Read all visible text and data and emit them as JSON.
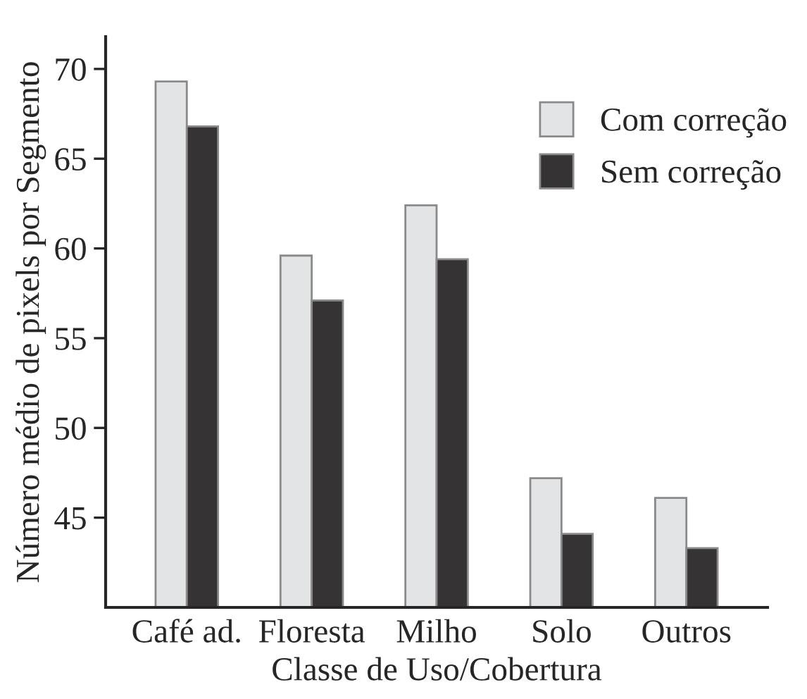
{
  "chart_data": {
    "type": "bar",
    "xlabel": "Classe de Uso/Cobertura",
    "ylabel": "Número médio de pixels por Segmento",
    "categories": [
      "Café ad.",
      "Floresta",
      "Milho",
      "Solo",
      "Outros"
    ],
    "series": [
      {
        "name": "Com correção",
        "color": "#e3e4e6",
        "values": [
          69.3,
          59.6,
          62.4,
          47.2,
          46.1
        ]
      },
      {
        "name": "Sem correção",
        "color": "#353334",
        "values": [
          66.8,
          57.1,
          59.4,
          44.1,
          43.3
        ]
      }
    ],
    "ylim": [
      40,
      71.8
    ],
    "yticks": [
      45,
      50,
      55,
      60,
      65,
      70
    ],
    "grid": false,
    "legend": "top right"
  }
}
